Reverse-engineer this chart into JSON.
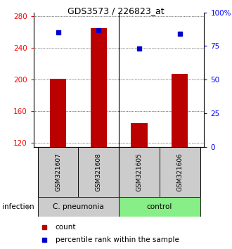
{
  "title": "GDS3573 / 226823_at",
  "samples": [
    "GSM321607",
    "GSM321608",
    "GSM321605",
    "GSM321606"
  ],
  "counts": [
    201,
    265,
    145,
    207
  ],
  "percentiles": [
    85,
    87,
    73,
    84
  ],
  "ylim_left": [
    115,
    285
  ],
  "ylim_right": [
    0,
    100
  ],
  "yticks_left": [
    120,
    160,
    200,
    240,
    280
  ],
  "yticks_right": [
    0,
    25,
    50,
    75,
    100
  ],
  "ytick_labels_right": [
    "0",
    "25",
    "50",
    "75",
    "100%"
  ],
  "bar_color": "#bb0000",
  "dot_color": "#0000cc",
  "group1_color": "#cccccc",
  "group2_color": "#88ee88",
  "group1_label": "C. pneumonia",
  "group2_label": "control",
  "infection_label": "infection",
  "legend_count": "count",
  "legend_pct": "percentile rank within the sample",
  "bar_width": 0.4,
  "title_fontsize": 9
}
